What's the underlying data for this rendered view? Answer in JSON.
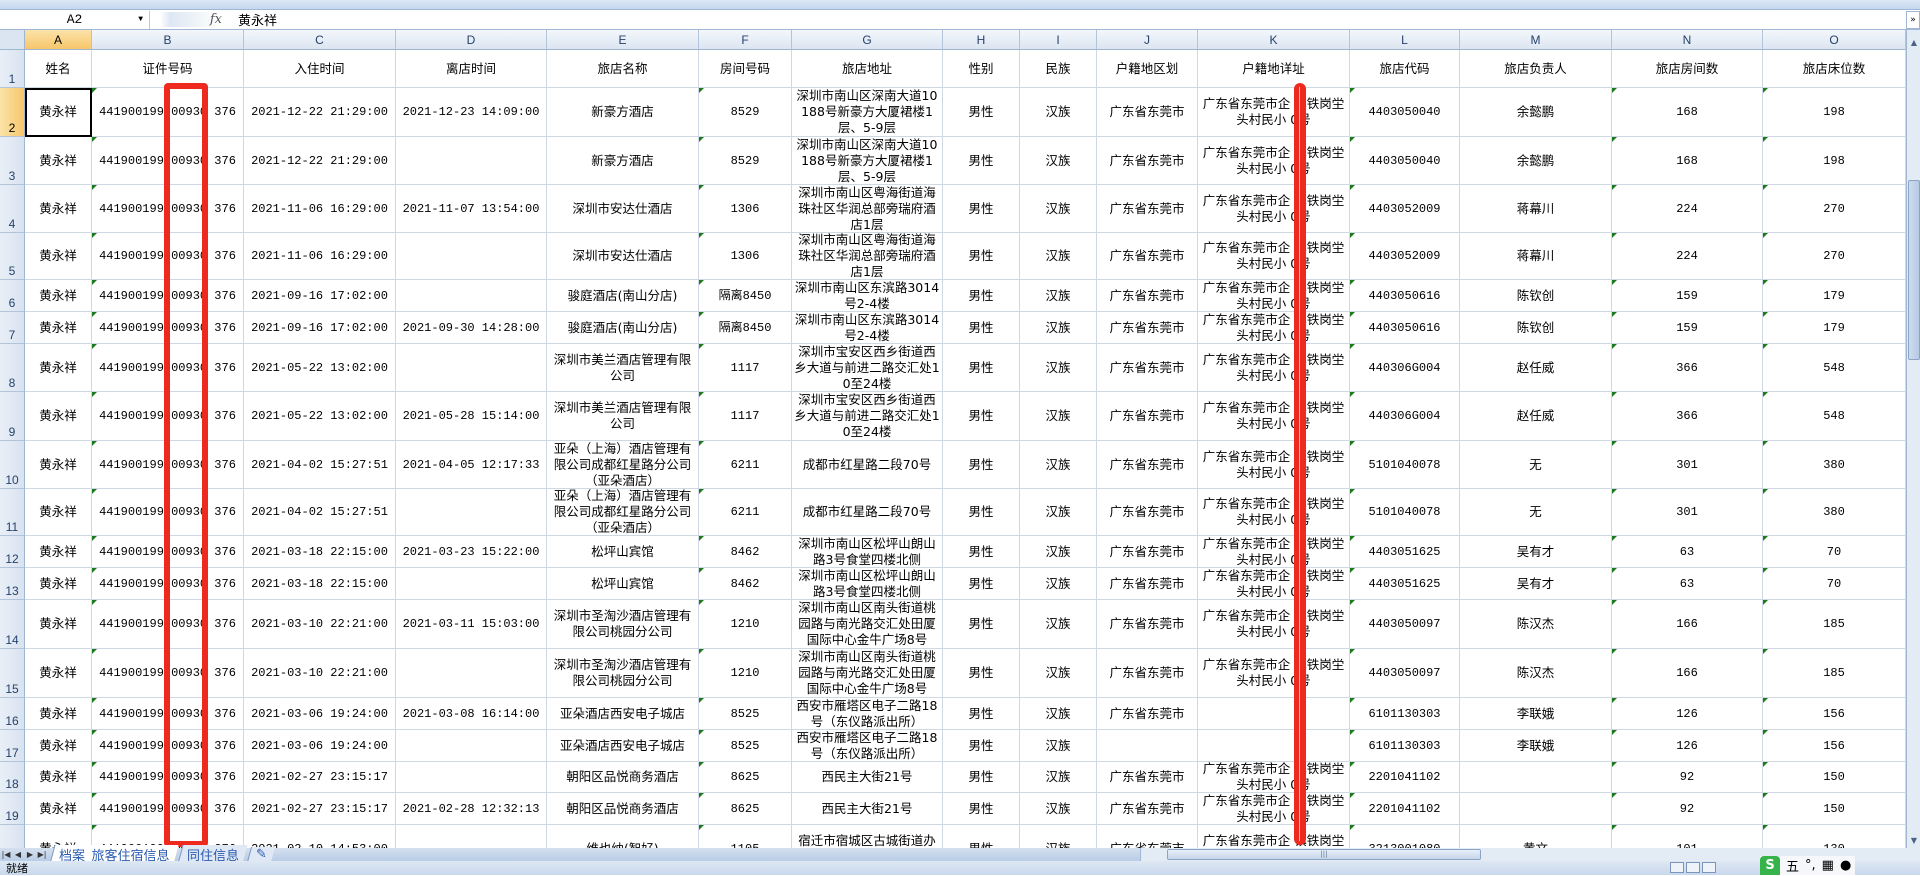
{
  "formula_bar": {
    "name_box": "A2",
    "fx_label": "fx",
    "value": "黄永祥",
    "expand_icon": "chevron-double-down-icon"
  },
  "columns": [
    "A",
    "B",
    "C",
    "D",
    "E",
    "F",
    "G",
    "H",
    "I",
    "J",
    "K",
    "L",
    "M",
    "N",
    "O"
  ],
  "selected_cell": {
    "col": "A",
    "row": 2
  },
  "header_row": [
    "姓名",
    "证件号码",
    "入住时间",
    "离店时间",
    "旅店名称",
    "房间号码",
    "旅店地址",
    "性别",
    "民族",
    "户籍地区划",
    "户籍地详址",
    "旅店代码",
    "旅店负责人",
    "旅店房间数",
    "旅店床位数"
  ],
  "rows": [
    {
      "num": "2",
      "cells": [
        "黄永祥",
        "441900199 00930 376",
        "2021-12-22 21:29:00",
        "2021-12-23 14:09:00",
        "新豪方酒店",
        "8529",
        "深圳市南山区深南大道10188号新豪方大厦裙楼1层、5-9层",
        "男性",
        "汉族",
        "广东省东莞市",
        "广东省东莞市企 镇铁岗坣头村民小 0号",
        "4403050040",
        "余懿鹏",
        "168",
        "198"
      ]
    },
    {
      "num": "3",
      "cells": [
        "黄永祥",
        "441900199 00930 376",
        "2021-12-22 21:29:00",
        "",
        "新豪方酒店",
        "8529",
        "深圳市南山区深南大道10188号新豪方大厦裙楼1层、5-9层",
        "男性",
        "汉族",
        "广东省东莞市",
        "广东省东莞市企 镇铁岗坣头村民小 0号",
        "4403050040",
        "余懿鹏",
        "168",
        "198"
      ]
    },
    {
      "num": "4",
      "cells": [
        "黄永祥",
        "441900199 00930 376",
        "2021-11-06 16:29:00",
        "2021-11-07 13:54:00",
        "深圳市安达仕酒店",
        "1306",
        "深圳市南山区粤海街道海珠社区华润总部旁瑞府酒店1层",
        "男性",
        "汉族",
        "广东省东莞市",
        "广东省东莞市企 镇铁岗坣头村民小 0号",
        "4403052009",
        "蒋幕川",
        "224",
        "270"
      ]
    },
    {
      "num": "5",
      "cells": [
        "黄永祥",
        "441900199 00930 376",
        "2021-11-06 16:29:00",
        "",
        "深圳市安达仕酒店",
        "1306",
        "深圳市南山区粤海街道海珠社区华润总部旁瑞府酒店1层",
        "男性",
        "汉族",
        "广东省东莞市",
        "广东省东莞市企 镇铁岗坣头村民小 0号",
        "4403052009",
        "蒋幕川",
        "224",
        "270"
      ]
    },
    {
      "num": "6",
      "cells": [
        "黄永祥",
        "441900199 00930 376",
        "2021-09-16 17:02:00",
        "",
        "骏庭酒店(南山分店)",
        "隔离8450",
        "深圳市南山区东滨路3014号2-4楼",
        "男性",
        "汉族",
        "广东省东莞市",
        "广东省东莞市企 镇铁岗坣头村民小 0号",
        "4403050616",
        "陈钦创",
        "159",
        "179"
      ]
    },
    {
      "num": "7",
      "cells": [
        "黄永祥",
        "441900199 00930 376",
        "2021-09-16 17:02:00",
        "2021-09-30 14:28:00",
        "骏庭酒店(南山分店)",
        "隔离8450",
        "深圳市南山区东滨路3014号2-4楼",
        "男性",
        "汉族",
        "广东省东莞市",
        "广东省东莞市企 镇铁岗坣头村民小 0号",
        "4403050616",
        "陈钦创",
        "159",
        "179"
      ]
    },
    {
      "num": "8",
      "cells": [
        "黄永祥",
        "441900199 00930 376",
        "2021-05-22 13:02:00",
        "",
        "深圳市美兰酒店管理有限公司",
        "1117",
        "深圳市宝安区西乡街道西乡大道与前进二路交汇处10至24楼",
        "男性",
        "汉族",
        "广东省东莞市",
        "广东省东莞市企 镇铁岗坣头村民小 0号",
        "440306G004",
        "赵任威",
        "366",
        "548"
      ]
    },
    {
      "num": "9",
      "cells": [
        "黄永祥",
        "441900199 00930 376",
        "2021-05-22 13:02:00",
        "2021-05-28 15:14:00",
        "深圳市美兰酒店管理有限公司",
        "1117",
        "深圳市宝安区西乡街道西乡大道与前进二路交汇处10至24楼",
        "男性",
        "汉族",
        "广东省东莞市",
        "广东省东莞市企 镇铁岗坣头村民小 0号",
        "440306G004",
        "赵任威",
        "366",
        "548"
      ]
    },
    {
      "num": "10",
      "cells": [
        "黄永祥",
        "441900199 00930 376",
        "2021-04-02 15:27:51",
        "2021-04-05 12:17:33",
        "亚朵（上海）酒店管理有限公司成都红星路分公司（亚朵酒店）",
        "6211",
        "成都市红星路二段70号",
        "男性",
        "汉族",
        "广东省东莞市",
        "广东省东莞市企 镇铁岗坣头村民小 0号",
        "5101040078",
        "无",
        "301",
        "380"
      ]
    },
    {
      "num": "11",
      "cells": [
        "黄永祥",
        "441900199 00930 376",
        "2021-04-02 15:27:51",
        "",
        "亚朵（上海）酒店管理有限公司成都红星路分公司（亚朵酒店）",
        "6211",
        "成都市红星路二段70号",
        "男性",
        "汉族",
        "广东省东莞市",
        "广东省东莞市企 镇铁岗坣头村民小 0号",
        "5101040078",
        "无",
        "301",
        "380"
      ]
    },
    {
      "num": "12",
      "cells": [
        "黄永祥",
        "441900199 00930 376",
        "2021-03-18 22:15:00",
        "2021-03-23 15:22:00",
        "松坪山宾馆",
        "8462",
        "深圳市南山区松坪山朗山路3号食堂四楼北侧",
        "男性",
        "汉族",
        "广东省东莞市",
        "广东省东莞市企 镇铁岗坣头村民小 0号",
        "4403051625",
        "吴有才",
        "63",
        "70"
      ]
    },
    {
      "num": "13",
      "cells": [
        "黄永祥",
        "441900199 00930 376",
        "2021-03-18 22:15:00",
        "",
        "松坪山宾馆",
        "8462",
        "深圳市南山区松坪山朗山路3号食堂四楼北侧",
        "男性",
        "汉族",
        "广东省东莞市",
        "广东省东莞市企 镇铁岗坣头村民小 0号",
        "4403051625",
        "吴有才",
        "63",
        "70"
      ]
    },
    {
      "num": "14",
      "cells": [
        "黄永祥",
        "441900199 00930 376",
        "2021-03-10 22:21:00",
        "2021-03-11 15:03:00",
        "深圳市圣淘沙酒店管理有限公司桃园分公司",
        "1210",
        "深圳市南山区南头街道桃园路与南光路交汇处田厦国际中心金牛广场8号",
        "男性",
        "汉族",
        "广东省东莞市",
        "广东省东莞市企 镇铁岗坣头村民小 0号",
        "4403050097",
        "陈汉杰",
        "166",
        "185"
      ]
    },
    {
      "num": "15",
      "cells": [
        "黄永祥",
        "441900199 00930 376",
        "2021-03-10 22:21:00",
        "",
        "深圳市圣淘沙酒店管理有限公司桃园分公司",
        "1210",
        "深圳市南山区南头街道桃园路与南光路交汇处田厦国际中心金牛广场8号",
        "男性",
        "汉族",
        "广东省东莞市",
        "广东省东莞市企 镇铁岗坣头村民小 0号",
        "4403050097",
        "陈汉杰",
        "166",
        "185"
      ]
    },
    {
      "num": "16",
      "cells": [
        "黄永祥",
        "441900199 00930 376",
        "2021-03-06 19:24:00",
        "2021-03-08 16:14:00",
        "亚朵酒店西安电子城店",
        "8525",
        "西安市雁塔区电子二路18号（东仪路派出所）",
        "男性",
        "汉族",
        "广东省东莞市",
        "",
        "6101130303",
        "李联娥",
        "126",
        "156"
      ]
    },
    {
      "num": "17",
      "cells": [
        "黄永祥",
        "441900199 00930 376",
        "2021-03-06 19:24:00",
        "",
        "亚朵酒店西安电子城店",
        "8525",
        "西安市雁塔区电子二路18号（东仪路派出所）",
        "男性",
        "汉族",
        "",
        "",
        "6101130303",
        "李联娥",
        "126",
        "156"
      ]
    },
    {
      "num": "18",
      "cells": [
        "黄永祥",
        "441900199 00930 376",
        "2021-02-27 23:15:17",
        "",
        "朝阳区品悦商务酒店",
        "8625",
        "西民主大街21号",
        "男性",
        "汉族",
        "广东省东莞市",
        "广东省东莞市企 镇铁岗坣头村民小 0号",
        "2201041102",
        "",
        "92",
        "150"
      ]
    },
    {
      "num": "19",
      "cells": [
        "黄永祥",
        "441900199 00930 376",
        "2021-02-27 23:15:17",
        "2021-02-28 12:32:13",
        "朝阳区品悦商务酒店",
        "8625",
        "西民主大街21号",
        "男性",
        "汉族",
        "广东省东莞市",
        "广东省东莞市企 镇铁岗坣头村民小 0号",
        "2201041102",
        "",
        "92",
        "150"
      ]
    },
    {
      "num": "20",
      "cells": [
        "黄永祥",
        "441900199 00930 376",
        "2021-02-10 14:53:00",
        "",
        "维也纳(智好)",
        "1105",
        "宿迁市宿城区古城街道办公大楼（地上北一层，地",
        "男性",
        "汉族",
        "广东省东莞市",
        "广东省东莞市企 镇铁岗坣头村民小 0号",
        "3213001080",
        "黄文",
        "101",
        "130"
      ]
    }
  ],
  "sheet_tabs": [
    {
      "label": "档案_旅客住宿信息",
      "active": true
    },
    {
      "label": "同住信息",
      "active": false
    }
  ],
  "status_bar": {
    "ready": "就绪",
    "ime_logo": "S",
    "ime_mode": "五"
  },
  "colors": {
    "redaction": "#ee2a1e",
    "selection_header": "#f7c66b",
    "text_indicator": "#1b7a1b"
  }
}
